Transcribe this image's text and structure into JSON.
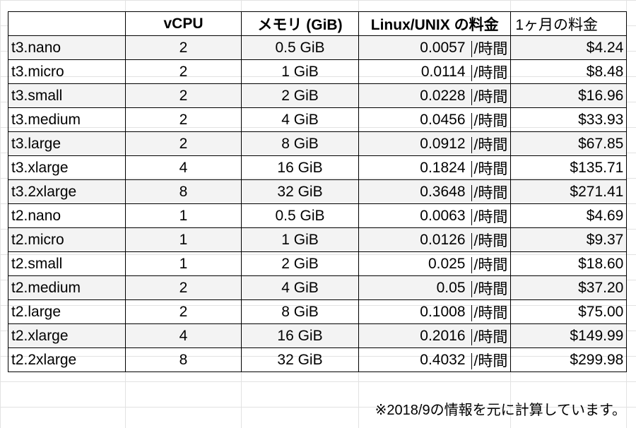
{
  "table": {
    "headers": {
      "type": "",
      "vcpu": "vCPU",
      "memory": "メモリ (GiB)",
      "price": "Linux/UNIX の料金",
      "monthly": "1ヶ月の料金"
    },
    "rows": [
      {
        "type": "t3.nano",
        "vcpu": "2",
        "memory": "0.5 GiB",
        "price": "0.0057",
        "unit": "/時間",
        "monthly": "$4.24"
      },
      {
        "type": "t3.micro",
        "vcpu": "2",
        "memory": "1 GiB",
        "price": "0.0114",
        "unit": "/時間",
        "monthly": "$8.48"
      },
      {
        "type": "t3.small",
        "vcpu": "2",
        "memory": "2 GiB",
        "price": "0.0228",
        "unit": "/時間",
        "monthly": "$16.96"
      },
      {
        "type": "t3.medium",
        "vcpu": "2",
        "memory": "4 GiB",
        "price": "0.0456",
        "unit": "/時間",
        "monthly": "$33.93"
      },
      {
        "type": "t3.large",
        "vcpu": "2",
        "memory": "8 GiB",
        "price": "0.0912",
        "unit": "/時間",
        "monthly": "$67.85"
      },
      {
        "type": "t3.xlarge",
        "vcpu": "4",
        "memory": "16 GiB",
        "price": "0.1824",
        "unit": "/時間",
        "monthly": "$135.71"
      },
      {
        "type": "t3.2xlarge",
        "vcpu": "8",
        "memory": "32 GiB",
        "price": "0.3648",
        "unit": "/時間",
        "monthly": "$271.41"
      },
      {
        "type": "t2.nano",
        "vcpu": "1",
        "memory": "0.5 GiB",
        "price": "0.0063",
        "unit": "/時間",
        "monthly": "$4.69"
      },
      {
        "type": "t2.micro",
        "vcpu": "1",
        "memory": "1 GiB",
        "price": "0.0126",
        "unit": "/時間",
        "monthly": "$9.37"
      },
      {
        "type": "t2.small",
        "vcpu": "1",
        "memory": "2 GiB",
        "price": "0.025",
        "unit": "/時間",
        "monthly": "$18.60"
      },
      {
        "type": "t2.medium",
        "vcpu": "2",
        "memory": "4 GiB",
        "price": "0.05",
        "unit": "/時間",
        "monthly": "$37.20"
      },
      {
        "type": "t2.large",
        "vcpu": "2",
        "memory": "8 GiB",
        "price": "0.1008",
        "unit": "/時間",
        "monthly": "$75.00"
      },
      {
        "type": "t2.xlarge",
        "vcpu": "4",
        "memory": "16 GiB",
        "price": "0.2016",
        "unit": "/時間",
        "monthly": "$149.99"
      },
      {
        "type": "t2.2xlarge",
        "vcpu": "8",
        "memory": "32 GiB",
        "price": "0.4032",
        "unit": "/時間",
        "monthly": "$299.98"
      }
    ]
  },
  "footnote": "※2018/9の情報を元に計算しています。",
  "colors": {
    "row_shade": "#f3f3f3",
    "border": "#000000",
    "sheet_grid": "#e2e2e2"
  }
}
